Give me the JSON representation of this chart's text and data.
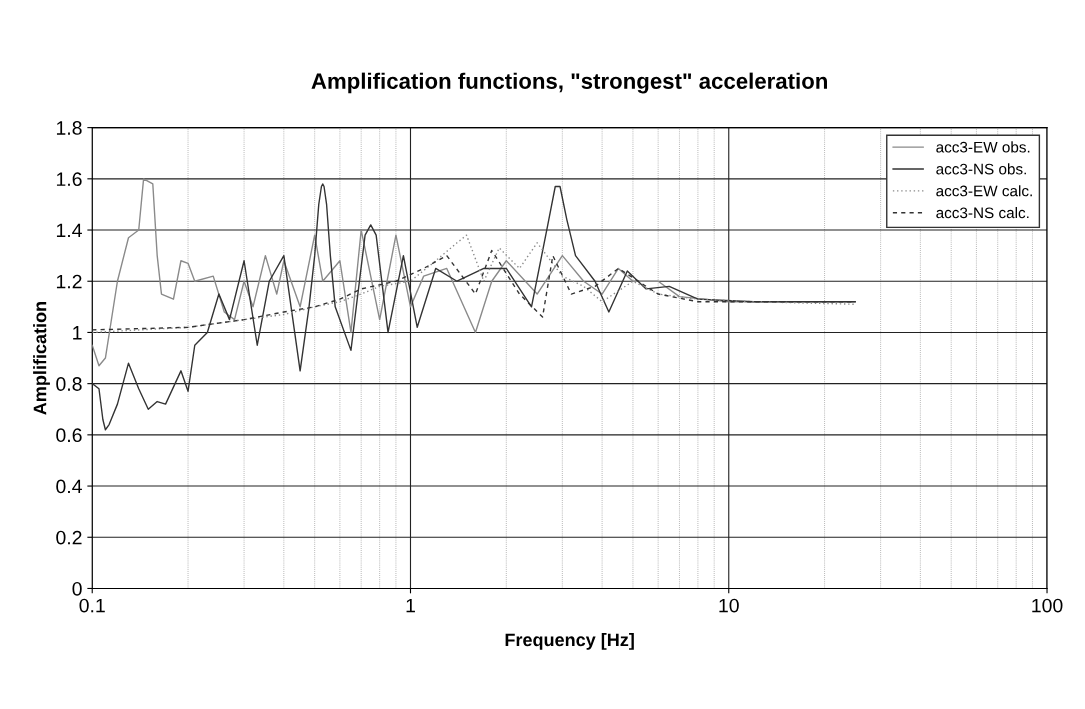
{
  "chart_data": {
    "type": "line",
    "title": "Amplification functions, \"strongest\" acceleration",
    "xlabel": "Frequency [Hz]",
    "ylabel": "Amplification",
    "log": "x",
    "xlim": [
      0.1,
      100
    ],
    "xticks": [
      0.1,
      1,
      10,
      100
    ],
    "ylim": [
      0,
      1.8
    ],
    "yticks": [
      0,
      0.2,
      0.4,
      0.6,
      0.8,
      1,
      1.2,
      1.4,
      1.6,
      1.8
    ],
    "grid": true,
    "legend": "top right",
    "marker": "none",
    "series": [
      {
        "name": "acc3-EW obs.",
        "color": "#8a8a8a",
        "line_style": "solid",
        "x": [
          0.1,
          0.105,
          0.11,
          0.12,
          0.13,
          0.14,
          0.145,
          0.155,
          0.16,
          0.165,
          0.18,
          0.19,
          0.2,
          0.21,
          0.24,
          0.26,
          0.28,
          0.3,
          0.32,
          0.35,
          0.38,
          0.4,
          0.45,
          0.5,
          0.53,
          0.6,
          0.65,
          0.7,
          0.8,
          0.9,
          1.0,
          1.1,
          1.3,
          1.6,
          1.8,
          2.0,
          2.5,
          3.0,
          3.5,
          4.0,
          4.5,
          5,
          6,
          7,
          10,
          25
        ],
        "values": [
          0.95,
          0.87,
          0.9,
          1.2,
          1.37,
          1.4,
          1.6,
          1.58,
          1.3,
          1.15,
          1.13,
          1.28,
          1.27,
          1.2,
          1.22,
          1.08,
          1.05,
          1.2,
          1.1,
          1.3,
          1.15,
          1.28,
          1.1,
          1.38,
          1.2,
          1.28,
          1.0,
          1.4,
          1.05,
          1.38,
          1.1,
          1.22,
          1.25,
          1.0,
          1.2,
          1.28,
          1.15,
          1.3,
          1.2,
          1.15,
          1.25,
          1.2,
          1.2,
          1.14,
          1.12,
          1.12
        ]
      },
      {
        "name": "acc3-NS obs.",
        "color": "#333333",
        "line_style": "solid",
        "x": [
          0.1,
          0.105,
          0.108,
          0.11,
          0.113,
          0.12,
          0.13,
          0.14,
          0.15,
          0.16,
          0.17,
          0.19,
          0.2,
          0.21,
          0.23,
          0.25,
          0.27,
          0.3,
          0.33,
          0.36,
          0.4,
          0.45,
          0.48,
          0.5,
          0.515,
          0.525,
          0.53,
          0.535,
          0.545,
          0.56,
          0.58,
          0.65,
          0.72,
          0.75,
          0.78,
          0.85,
          0.95,
          1.05,
          1.2,
          1.4,
          1.7,
          2.0,
          2.4,
          2.7,
          2.85,
          2.95,
          3.1,
          3.3,
          3.8,
          4.2,
          4.8,
          5.5,
          6.5,
          8,
          12,
          25
        ],
        "values": [
          0.8,
          0.78,
          0.66,
          0.62,
          0.64,
          0.72,
          0.88,
          0.78,
          0.7,
          0.73,
          0.72,
          0.85,
          0.77,
          0.95,
          1.0,
          1.15,
          1.05,
          1.28,
          0.95,
          1.2,
          1.3,
          0.85,
          1.1,
          1.3,
          1.5,
          1.57,
          1.58,
          1.57,
          1.5,
          1.3,
          1.1,
          0.93,
          1.38,
          1.42,
          1.38,
          1.0,
          1.3,
          1.02,
          1.25,
          1.2,
          1.25,
          1.25,
          1.1,
          1.42,
          1.57,
          1.57,
          1.44,
          1.3,
          1.2,
          1.08,
          1.24,
          1.17,
          1.18,
          1.13,
          1.12,
          1.12
        ]
      },
      {
        "name": "acc3-EW calc.",
        "color": "#8a8a8a",
        "line_style": "dotted",
        "x": [
          0.1,
          0.2,
          0.3,
          0.4,
          0.5,
          0.6,
          0.7,
          0.8,
          1.0,
          1.2,
          1.4,
          1.5,
          1.7,
          1.9,
          2.2,
          2.5,
          3.0,
          3.5,
          4,
          5,
          6,
          8,
          12,
          25
        ],
        "values": [
          1.0,
          1.02,
          1.05,
          1.07,
          1.1,
          1.12,
          1.15,
          1.18,
          1.2,
          1.28,
          1.35,
          1.38,
          1.2,
          1.33,
          1.25,
          1.35,
          1.22,
          1.18,
          1.12,
          1.2,
          1.15,
          1.13,
          1.12,
          1.11
        ]
      },
      {
        "name": "acc3-NS calc.",
        "color": "#333333",
        "line_style": "dashed",
        "x": [
          0.1,
          0.2,
          0.3,
          0.4,
          0.5,
          0.6,
          0.7,
          0.9,
          1.1,
          1.3,
          1.6,
          1.8,
          2.2,
          2.6,
          2.8,
          3.2,
          3.8,
          4.5,
          6,
          8,
          15,
          25
        ],
        "values": [
          1.01,
          1.02,
          1.05,
          1.08,
          1.1,
          1.13,
          1.17,
          1.2,
          1.25,
          1.3,
          1.15,
          1.32,
          1.15,
          1.06,
          1.3,
          1.15,
          1.18,
          1.25,
          1.15,
          1.12,
          1.12,
          1.12
        ]
      }
    ]
  }
}
